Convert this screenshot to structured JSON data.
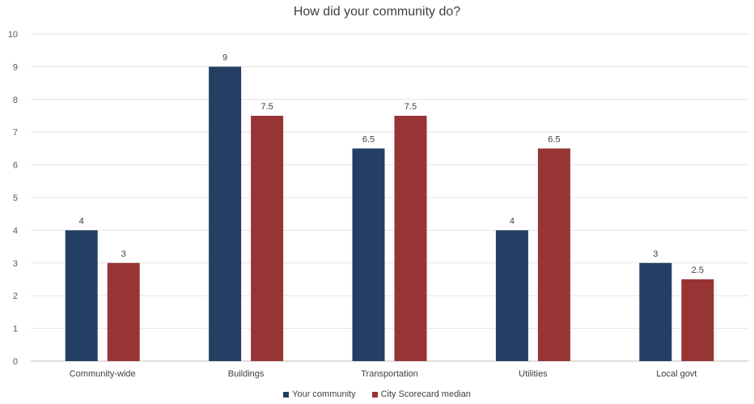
{
  "chart_data": {
    "type": "bar",
    "title": "How did your community do?",
    "xlabel": "",
    "ylabel": "",
    "categories": [
      "Community-wide",
      "Buildings",
      "Transportation",
      "Utilities",
      "Local govt"
    ],
    "series": [
      {
        "name": "Your community",
        "values": [
          4,
          9,
          6.5,
          4,
          3
        ],
        "color": "#243f63"
      },
      {
        "name": "City Scorecard median",
        "values": [
          3,
          7.5,
          7.5,
          6.5,
          2.5
        ],
        "color": "#973535"
      }
    ],
    "ylim": [
      0,
      10
    ],
    "yticks": [
      0,
      1,
      2,
      3,
      4,
      5,
      6,
      7,
      8,
      9,
      10
    ],
    "grid": true,
    "legend": "bottom-center",
    "data_labels": true
  }
}
